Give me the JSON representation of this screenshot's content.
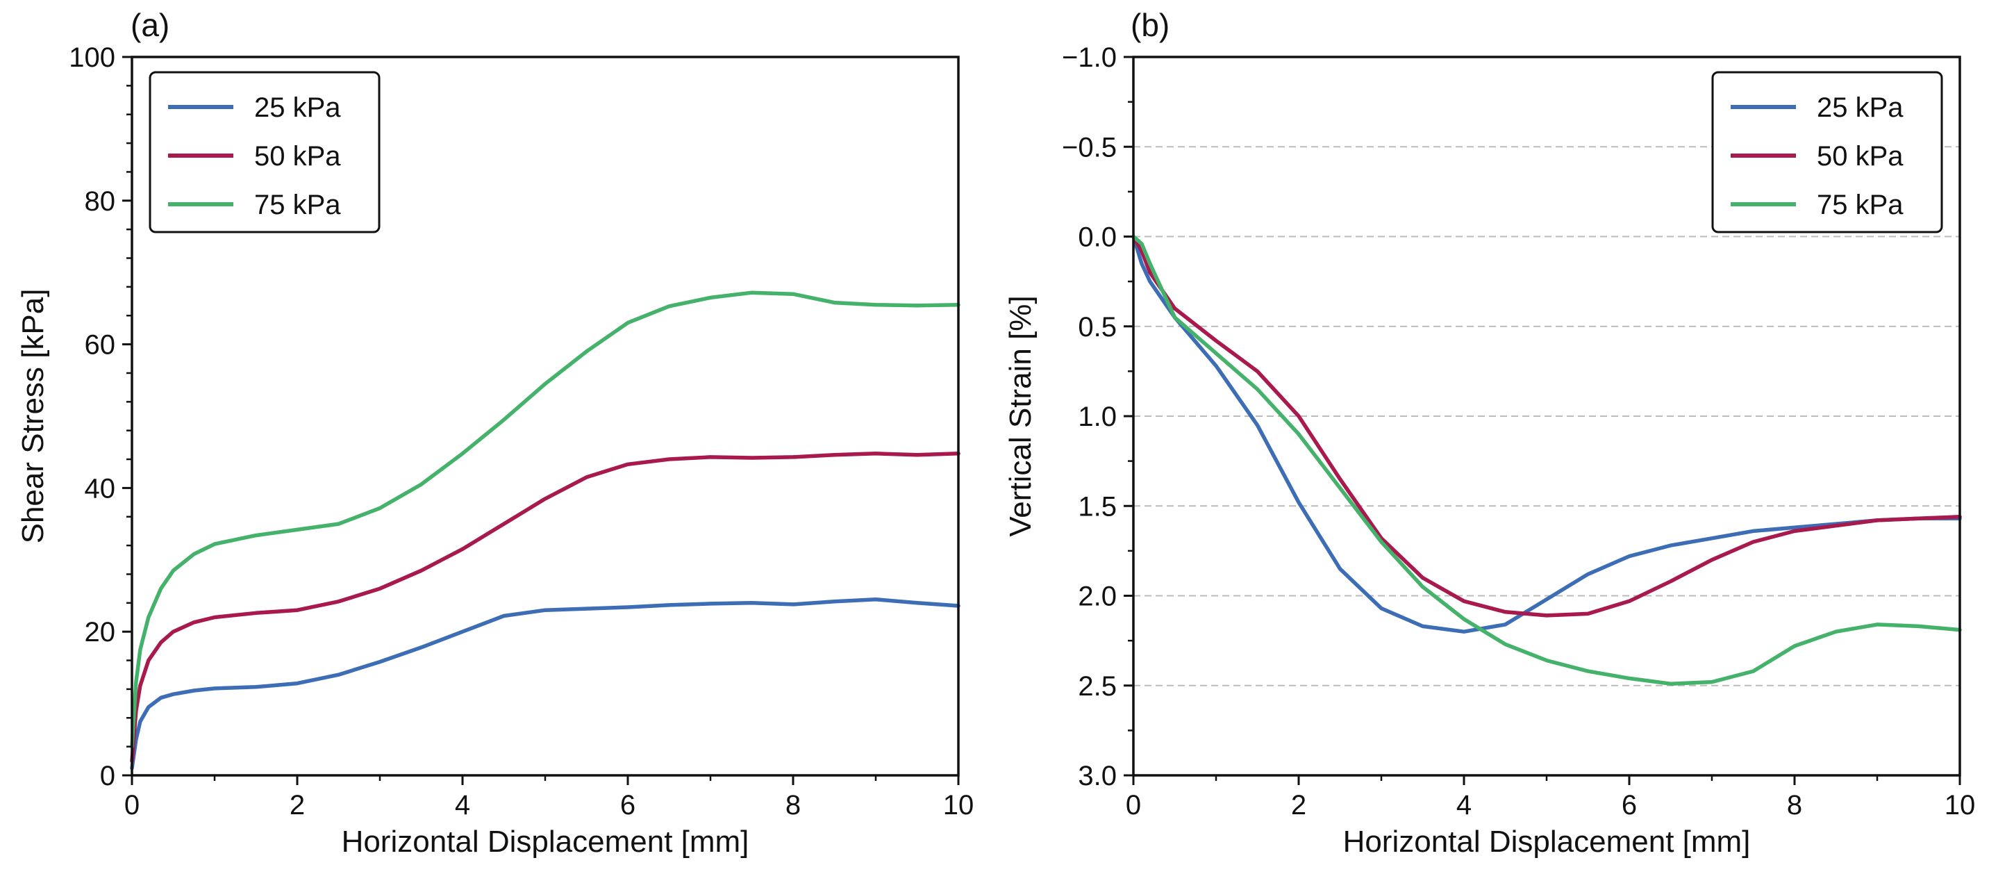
{
  "colors": {
    "s25": "#3d6db5",
    "s50": "#a8194e",
    "s75": "#45b26b",
    "axis": "#111111",
    "grid": "#bbbbbb"
  },
  "chart_data": [
    {
      "type": "line",
      "panel_label": "(a)",
      "xlabel": "Horizontal Displacement [mm]",
      "ylabel": "Shear Stress [kPa]",
      "xlim": [
        0,
        10
      ],
      "ylim": [
        0,
        100
      ],
      "xticks": [
        "0",
        "2",
        "4",
        "6",
        "8",
        "10"
      ],
      "yticks": [
        "0",
        "20",
        "40",
        "60",
        "80",
        "100"
      ],
      "grid": false,
      "legend_position": "top-left",
      "series": [
        {
          "name": "25 kPa",
          "x": [
            0,
            0.05,
            0.1,
            0.2,
            0.35,
            0.5,
            0.75,
            1.0,
            1.5,
            2.0,
            2.5,
            3.0,
            3.5,
            4.0,
            4.5,
            5.0,
            5.5,
            6.0,
            6.5,
            7.0,
            7.5,
            8.0,
            8.5,
            9.0,
            9.5,
            10.0
          ],
          "y": [
            1,
            5,
            7.5,
            9.5,
            10.8,
            11.3,
            11.8,
            12.1,
            12.3,
            12.8,
            14.0,
            15.8,
            17.8,
            20.0,
            22.2,
            23.0,
            23.2,
            23.4,
            23.7,
            23.9,
            24.0,
            23.8,
            24.2,
            24.5,
            24.0,
            23.6
          ]
        },
        {
          "name": "50 kPa",
          "x": [
            0,
            0.05,
            0.1,
            0.2,
            0.35,
            0.5,
            0.75,
            1.0,
            1.5,
            2.0,
            2.5,
            3.0,
            3.5,
            4.0,
            4.5,
            5.0,
            5.5,
            6.0,
            6.5,
            7.0,
            7.5,
            8.0,
            8.5,
            9.0,
            9.5,
            10.0
          ],
          "y": [
            2,
            9,
            12.5,
            16,
            18.5,
            20,
            21.3,
            22.0,
            22.6,
            23.0,
            24.2,
            26.0,
            28.5,
            31.5,
            35.0,
            38.5,
            41.5,
            43.3,
            44.0,
            44.3,
            44.2,
            44.3,
            44.6,
            44.8,
            44.6,
            44.8
          ]
        },
        {
          "name": "75 kPa",
          "x": [
            0,
            0.05,
            0.1,
            0.2,
            0.35,
            0.5,
            0.75,
            1.0,
            1.5,
            2.0,
            2.5,
            3.0,
            3.5,
            4.0,
            4.5,
            5.0,
            5.5,
            6.0,
            6.5,
            7.0,
            7.5,
            8.0,
            8.5,
            9.0,
            9.5,
            10.0
          ],
          "y": [
            4,
            13,
            17.5,
            22,
            26,
            28.5,
            30.8,
            32.2,
            33.4,
            34.2,
            35.0,
            37.2,
            40.5,
            44.8,
            49.5,
            54.5,
            59.0,
            63.0,
            65.3,
            66.5,
            67.2,
            67.0,
            65.8,
            65.5,
            65.4,
            65.5
          ]
        }
      ]
    },
    {
      "type": "line",
      "panel_label": "(b)",
      "xlabel": "Horizontal Displacement [mm]",
      "ylabel": "Vertical Strain [%]",
      "xlim": [
        0,
        10
      ],
      "ylim": [
        3.0,
        -1.0
      ],
      "xticks": [
        "0",
        "2",
        "4",
        "6",
        "8",
        "10"
      ],
      "yticks": [
        "−1.0",
        "−0.5",
        "0.0",
        "0.5",
        "1.0",
        "1.5",
        "2.0",
        "2.5",
        "3.0"
      ],
      "grid": true,
      "legend_position": "top-right",
      "series": [
        {
          "name": "25 kPa",
          "x": [
            0,
            0.1,
            0.2,
            0.5,
            1.0,
            1.5,
            2.0,
            2.5,
            3.0,
            3.5,
            4.0,
            4.5,
            5.0,
            5.5,
            6.0,
            6.5,
            7.0,
            7.5,
            8.0,
            8.5,
            9.0,
            9.5,
            10.0
          ],
          "y": [
            0,
            0.15,
            0.25,
            0.45,
            0.72,
            1.05,
            1.48,
            1.85,
            2.07,
            2.17,
            2.2,
            2.16,
            2.02,
            1.88,
            1.78,
            1.72,
            1.68,
            1.64,
            1.62,
            1.6,
            1.58,
            1.57,
            1.57
          ]
        },
        {
          "name": "50 kPa",
          "x": [
            0,
            0.1,
            0.2,
            0.5,
            1.0,
            1.5,
            2.0,
            2.5,
            3.0,
            3.5,
            4.0,
            4.5,
            5.0,
            5.5,
            6.0,
            6.5,
            7.0,
            7.5,
            8.0,
            8.5,
            9.0,
            9.5,
            10.0
          ],
          "y": [
            0,
            0.08,
            0.2,
            0.4,
            0.58,
            0.75,
            1.0,
            1.35,
            1.68,
            1.9,
            2.03,
            2.09,
            2.11,
            2.1,
            2.03,
            1.92,
            1.8,
            1.7,
            1.64,
            1.61,
            1.58,
            1.57,
            1.56
          ]
        },
        {
          "name": "75 kPa",
          "x": [
            0,
            0.1,
            0.2,
            0.5,
            1.0,
            1.5,
            2.0,
            2.5,
            3.0,
            3.5,
            4.0,
            4.5,
            5.0,
            5.5,
            6.0,
            6.5,
            7.0,
            7.5,
            8.0,
            8.5,
            9.0,
            9.5,
            10.0
          ],
          "y": [
            0,
            0.04,
            0.15,
            0.45,
            0.65,
            0.85,
            1.1,
            1.4,
            1.7,
            1.95,
            2.13,
            2.27,
            2.36,
            2.42,
            2.46,
            2.49,
            2.48,
            2.42,
            2.28,
            2.2,
            2.16,
            2.17,
            2.19
          ]
        }
      ]
    }
  ]
}
